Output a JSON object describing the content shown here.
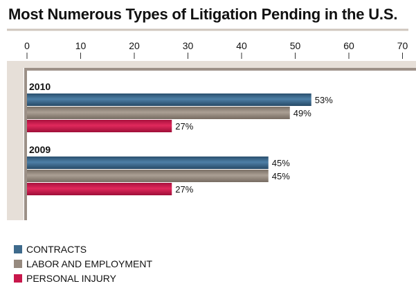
{
  "chart_data": {
    "type": "bar",
    "orientation": "horizontal",
    "title": "Most Numerous Types of Litigation Pending in the U.S.",
    "xlim": [
      0,
      70
    ],
    "ticks": [
      "0",
      "10",
      "20",
      "30",
      "40",
      "50",
      "60",
      "70"
    ],
    "categories": [
      "2010",
      "2009"
    ],
    "series": [
      {
        "name": "CONTRACTS",
        "color": "#3e6a8c",
        "values": [
          53,
          45
        ],
        "labels": [
          "53%",
          "45%"
        ]
      },
      {
        "name": "LABOR AND EMPLOYMENT",
        "color": "#968a7f",
        "values": [
          49,
          45
        ],
        "labels": [
          "49%",
          "45%"
        ]
      },
      {
        "name": "PERSONAL INJURY",
        "color": "#c8174b",
        "values": [
          27,
          27
        ],
        "labels": [
          "27%",
          "27%"
        ]
      }
    ],
    "legend_position": "bottom-left",
    "grid": false
  }
}
